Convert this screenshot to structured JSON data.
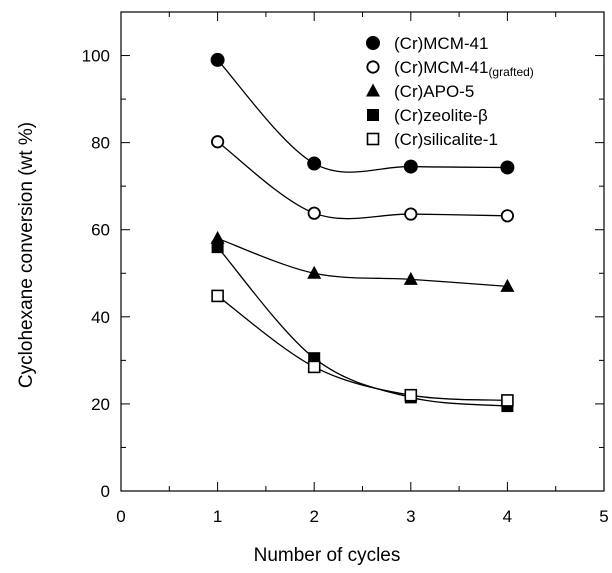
{
  "chart_data": {
    "type": "scatter",
    "xlabel": "Number of cycles",
    "ylabel": "Cyclohexane conversion (wt %)",
    "xlim": [
      0,
      5
    ],
    "ylim": [
      0,
      110
    ],
    "xticks": [
      0,
      1,
      2,
      3,
      4,
      5
    ],
    "yticks": [
      0,
      20,
      40,
      60,
      80,
      100
    ],
    "grid": false,
    "legend_position": "top-right",
    "series": [
      {
        "name": "(Cr)MCM-41",
        "name_sub": "",
        "marker": "filled-circle",
        "x": [
          1,
          2,
          3,
          4
        ],
        "y": [
          99,
          75.2,
          74.5,
          74.3
        ]
      },
      {
        "name": "(Cr)MCM-41",
        "name_sub": "(grafted)",
        "marker": "open-circle",
        "x": [
          1,
          2,
          3,
          4
        ],
        "y": [
          80.2,
          63.8,
          63.6,
          63.2
        ]
      },
      {
        "name": "(Cr)APO-5",
        "name_sub": "",
        "marker": "filled-triangle",
        "x": [
          1,
          2,
          3,
          4
        ],
        "y": [
          58,
          50,
          48.6,
          47
        ]
      },
      {
        "name": "(Cr)zeolite-β",
        "name_sub": "",
        "marker": "filled-square",
        "x": [
          1,
          2,
          3,
          4
        ],
        "y": [
          56,
          30.5,
          21.5,
          19.5
        ]
      },
      {
        "name": "(Cr)silicalite-1",
        "name_sub": "",
        "marker": "open-square",
        "x": [
          1,
          2,
          3,
          4
        ],
        "y": [
          44.8,
          28.5,
          22,
          20.8
        ]
      }
    ]
  }
}
